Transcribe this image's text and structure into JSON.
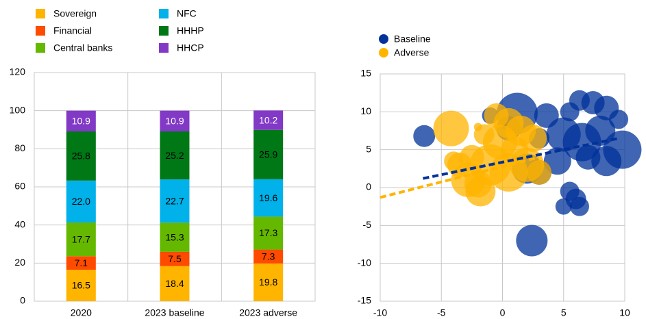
{
  "chart_data": [
    {
      "type": "bar",
      "stacked": true,
      "categories": [
        "2020",
        "2023 baseline",
        "2023 adverse"
      ],
      "series": [
        {
          "name": "Sovereign",
          "color": "#ffb400",
          "label_color": "#000000",
          "values": [
            16.5,
            18.4,
            19.8
          ],
          "value_labels": [
            "16.5",
            "18.4",
            "19.8"
          ]
        },
        {
          "name": "Financial",
          "color": "#ff4b00",
          "label_color": "#000000",
          "values": [
            7.1,
            7.5,
            7.3
          ],
          "value_labels": [
            "7.1",
            "7.5",
            "7.3"
          ]
        },
        {
          "name": "Central banks",
          "color": "#65b800",
          "label_color": "#000000",
          "values": [
            17.7,
            15.3,
            17.3
          ],
          "value_labels": [
            "17.7",
            "15.3",
            "17.3"
          ]
        },
        {
          "name": "NFC",
          "color": "#00b1ea",
          "label_color": "#000000",
          "values": [
            22.0,
            22.7,
            19.6
          ],
          "value_labels": [
            "22.0",
            "22.7",
            "19.6"
          ]
        },
        {
          "name": "HHHP",
          "color": "#007816",
          "label_color": "#000000",
          "values": [
            25.8,
            25.2,
            25.9
          ],
          "value_labels": [
            "25.8",
            "25.2",
            "25.9"
          ]
        },
        {
          "name": "HHCP",
          "color": "#8139c6",
          "label_color": "#ffffff",
          "values": [
            10.9,
            10.9,
            10.2
          ],
          "value_labels": [
            "10.9",
            "10.9",
            "10.2"
          ]
        }
      ],
      "ylim": [
        0,
        120
      ],
      "yticks": [
        0,
        20,
        40,
        60,
        80,
        100,
        120
      ],
      "grid": true,
      "legend": "top"
    },
    {
      "type": "scatter",
      "bubble": true,
      "series": [
        {
          "name": "Baseline",
          "color": "#003299",
          "x": [
            -6.4,
            1.2,
            3.6,
            5.5,
            6.3,
            7.4,
            8.5,
            9.5,
            5,
            6.5,
            8,
            9.8,
            8.5,
            7,
            3,
            4.5,
            2,
            3,
            5.5,
            6,
            5,
            6.3,
            2.4,
            -1,
            0.5
          ],
          "values": [
            6.8,
            9.8,
            9.5,
            10,
            11.5,
            11.2,
            10.5,
            9,
            7,
            6,
            7.5,
            5,
            3.5,
            4,
            6.5,
            3.5,
            2.5,
            2,
            -0.5,
            -1.5,
            -2.5,
            -2.5,
            -7,
            9.5,
            7.8
          ],
          "sizes": [
            16,
            30,
            18,
            14,
            15,
            17,
            18,
            14,
            25,
            28,
            22,
            28,
            22,
            18,
            15,
            20,
            22,
            18,
            14,
            15,
            12,
            14,
            23,
            12,
            18
          ],
          "trend_x": [
            -6.5,
            9.5
          ],
          "trend_y": [
            1.2,
            6.5
          ]
        },
        {
          "name": "Adverse",
          "color": "#ffb400",
          "x": [
            -4.2,
            -2.5,
            -2.8,
            -1.8,
            -0.5,
            0.5,
            -0.2,
            1.5,
            2.5,
            -1,
            0.5,
            2,
            3,
            -3.5,
            -1.5,
            1,
            -2,
            -4,
            -2
          ],
          "values": [
            7.8,
            4,
            1,
            -0.5,
            9.5,
            8.5,
            6,
            7.5,
            6.5,
            3,
            2,
            3,
            2,
            3,
            7,
            5,
            0.5,
            3.5,
            8
          ],
          "sizes": [
            26,
            18,
            25,
            22,
            18,
            22,
            25,
            22,
            20,
            30,
            28,
            25,
            18,
            18,
            15,
            20,
            20,
            14,
            6
          ],
          "trend_x": [
            -10,
            3
          ],
          "trend_y": [
            -1.3,
            4
          ]
        }
      ],
      "xlim": [
        -10,
        10
      ],
      "xticks": [
        -10,
        -5,
        0,
        5,
        10
      ],
      "ylim": [
        -15,
        15
      ],
      "yticks": [
        -15,
        -10,
        -5,
        0,
        5,
        10,
        15
      ],
      "grid": true,
      "legend": "top-left"
    }
  ]
}
